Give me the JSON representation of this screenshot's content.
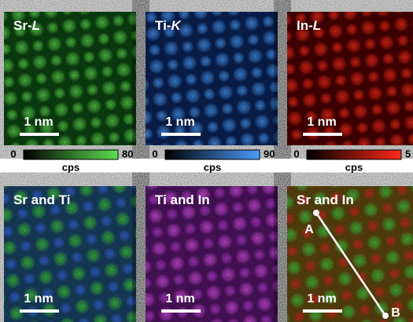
{
  "panels": [
    {
      "label": {
        "element": "Sr-",
        "line": "L"
      },
      "scale_bar": "1 nm",
      "colorbar": {
        "min": 0,
        "max": 80,
        "unit": "cps"
      }
    },
    {
      "label": {
        "element": "Ti-",
        "line": "K"
      },
      "scale_bar": "1 nm",
      "colorbar": {
        "min": 0,
        "max": 90,
        "unit": "cps"
      }
    },
    {
      "label": {
        "element": "In-",
        "line": "L"
      },
      "scale_bar": "1 nm",
      "colorbar": {
        "min": 0,
        "max": 5,
        "unit": "cps"
      }
    },
    {
      "label": {
        "element": "Sr and Ti"
      },
      "scale_bar": "1 nm"
    },
    {
      "label": {
        "element": "Ti and In"
      },
      "scale_bar": "1 nm"
    },
    {
      "label": {
        "element": "Sr and In"
      },
      "scale_bar": "1 nm",
      "line_start": "A",
      "line_end": "B"
    }
  ]
}
